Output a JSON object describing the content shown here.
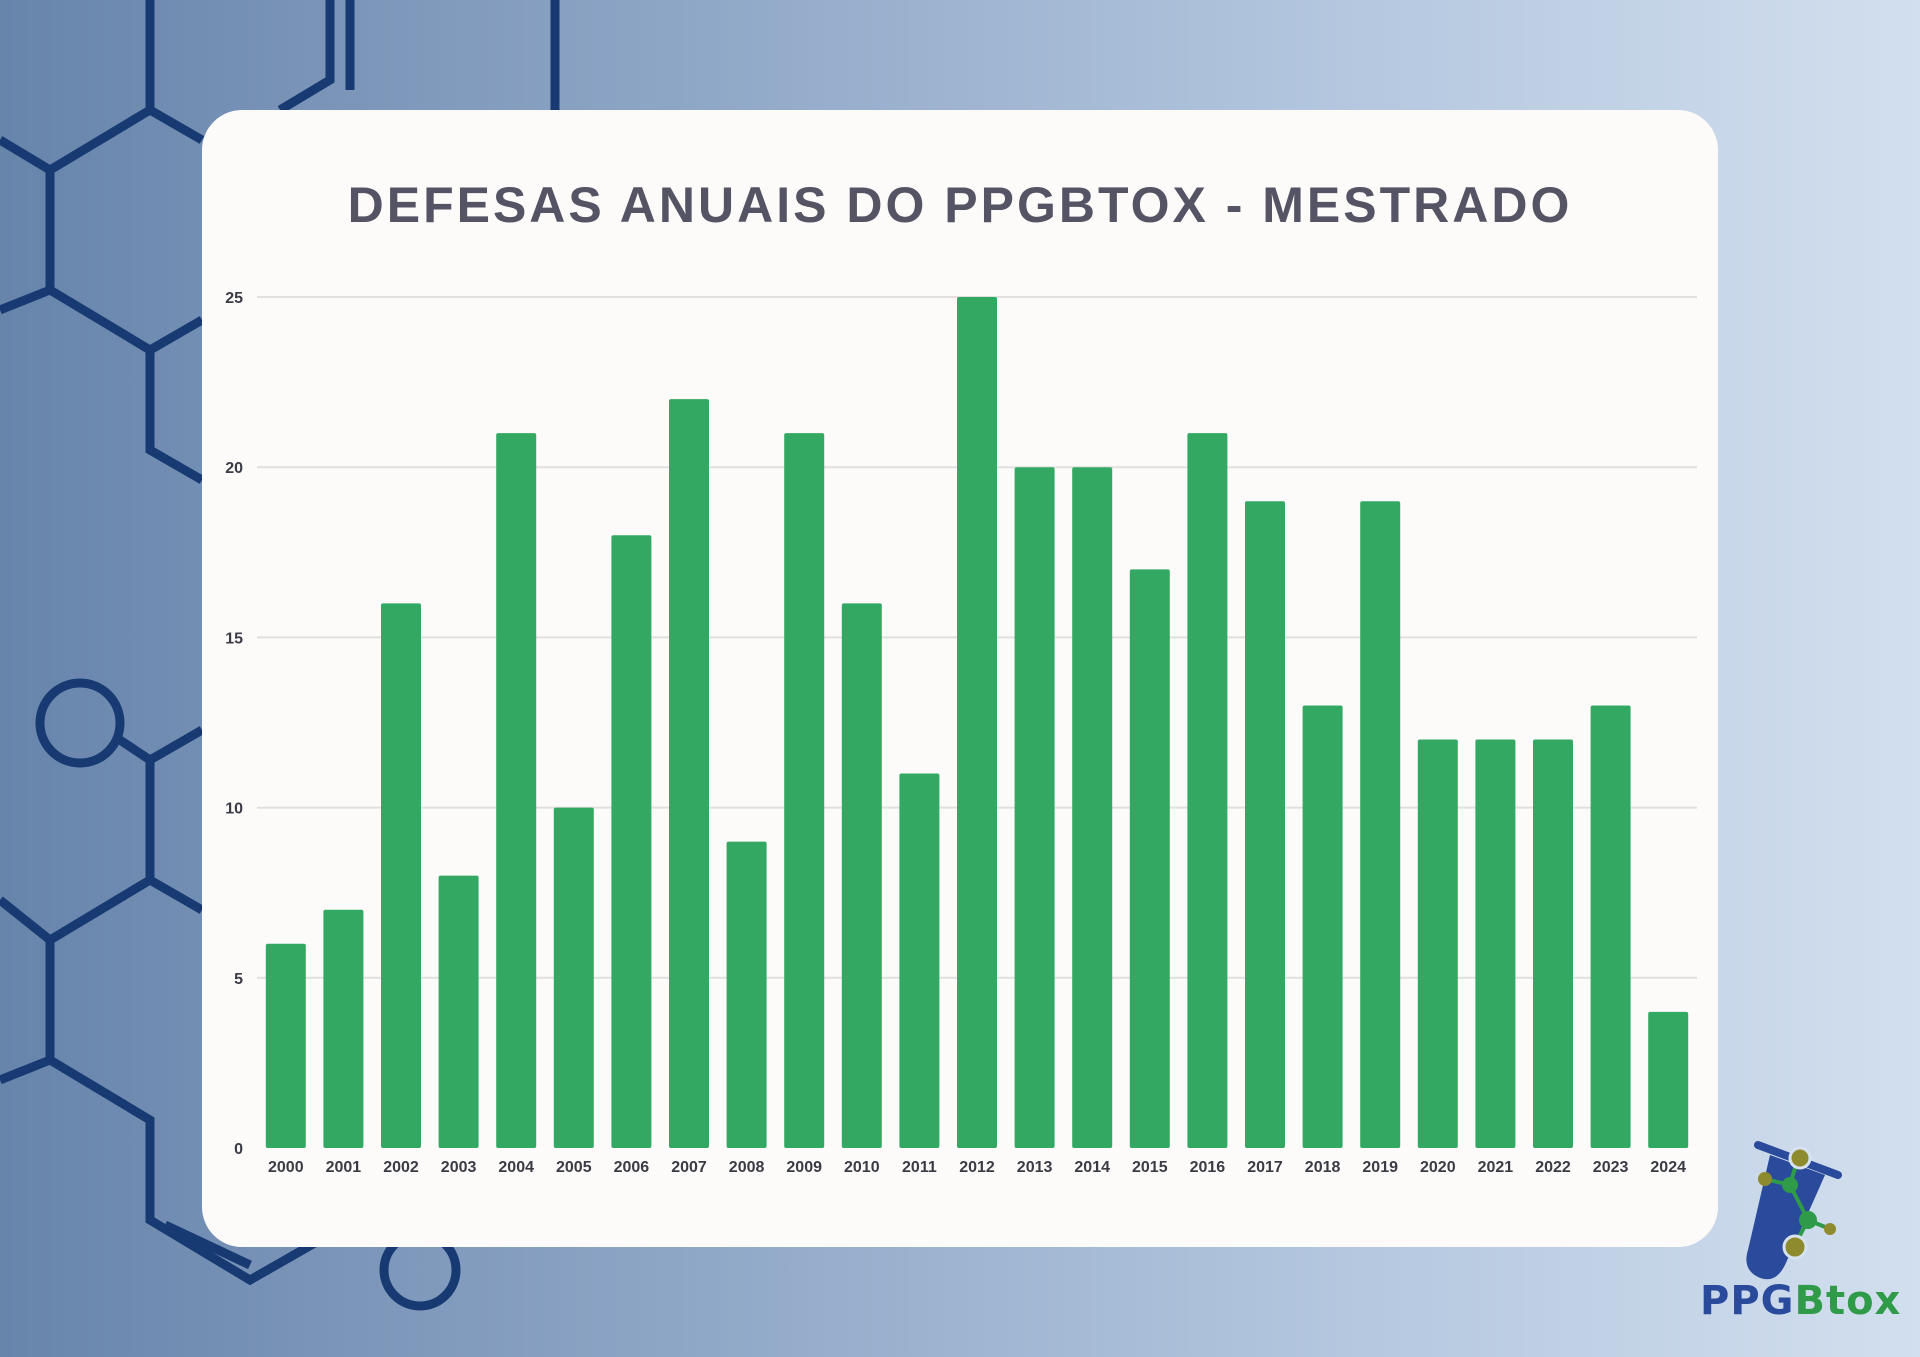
{
  "chart_data": {
    "type": "bar",
    "title": "DEFESAS ANUAIS DO PPGBTOX - MESTRADO",
    "xlabel": "",
    "ylabel": "",
    "categories": [
      "2000",
      "2001",
      "2002",
      "2003",
      "2004",
      "2005",
      "2006",
      "2007",
      "2008",
      "2009",
      "2010",
      "2011",
      "2012",
      "2013",
      "2014",
      "2015",
      "2016",
      "2017",
      "2018",
      "2019",
      "2020",
      "2021",
      "2022",
      "2023",
      "2024"
    ],
    "values": [
      6,
      7,
      16,
      8,
      21,
      10,
      18,
      22,
      9,
      21,
      16,
      11,
      25,
      20,
      20,
      17,
      21,
      19,
      13,
      19,
      12,
      12,
      12,
      13,
      4
    ],
    "ylim": [
      0,
      25
    ],
    "yticks": [
      "0",
      "5",
      "10",
      "15",
      "20",
      "25"
    ],
    "grid": true,
    "bar_color": "#33a862"
  },
  "logo": {
    "text_part1": "PPG",
    "text_part2": "Btox"
  }
}
